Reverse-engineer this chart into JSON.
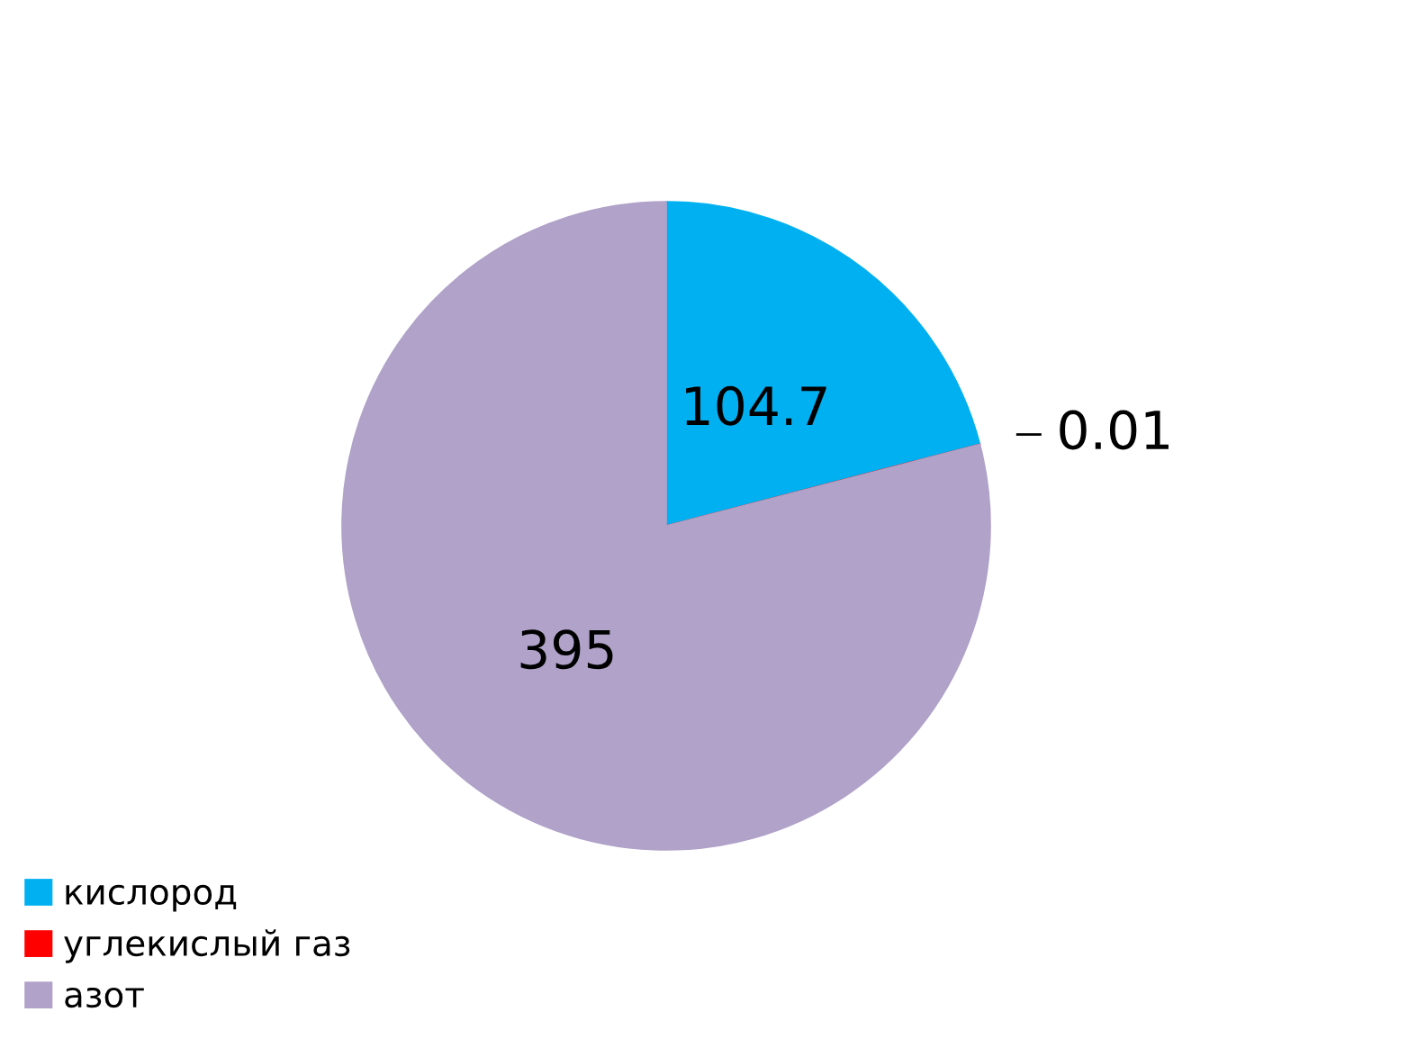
{
  "chart_data": {
    "type": "pie",
    "categories": [
      "кислород",
      "углекислый газ",
      "азот"
    ],
    "values": [
      104.7,
      0.01,
      395
    ],
    "colors": [
      "#00b0f0",
      "#ff0000",
      "#b0a2c8"
    ],
    "data_labels": true,
    "legend": "bottom left"
  }
}
